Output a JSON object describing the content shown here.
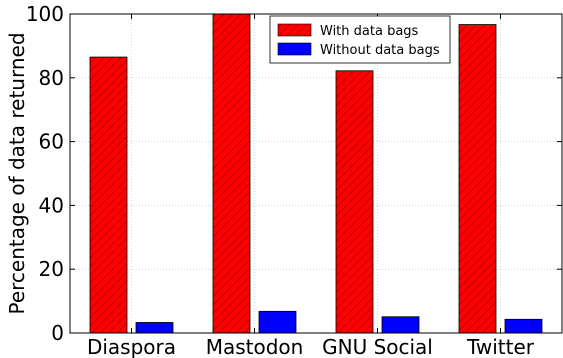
{
  "chart_data": {
    "type": "bar",
    "categories": [
      "Diaspora",
      "Mastodon",
      "GNU Social",
      "Twitter"
    ],
    "series": [
      {
        "name": "With data bags",
        "values": [
          86.5,
          100,
          82.2,
          96.7
        ],
        "color": "#ff0000",
        "hatch": true
      },
      {
        "name": "Without data bags",
        "values": [
          3.3,
          6.8,
          5.1,
          4.3
        ],
        "color": "#0000ff",
        "hatch": false
      }
    ],
    "title": "",
    "xlabel": "",
    "ylabel": "Percentage of data returned",
    "ylim": [
      0,
      100
    ],
    "yticks": [
      0,
      20,
      40,
      60,
      80,
      100
    ],
    "grid": true,
    "legend_position": "top-right"
  }
}
